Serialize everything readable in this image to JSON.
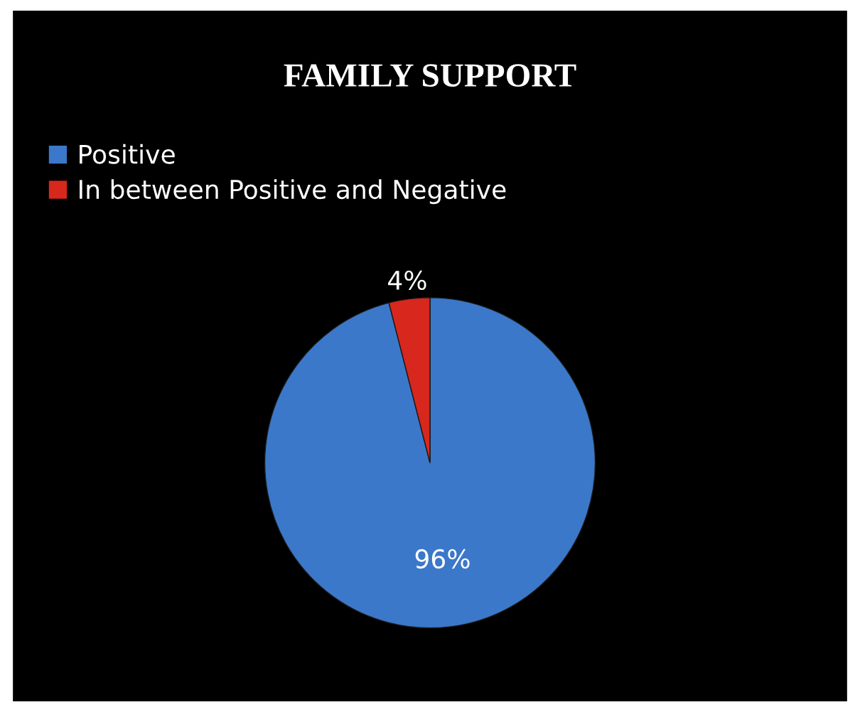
{
  "chart_data": {
    "type": "pie",
    "title": "FAMILY SUPPORT",
    "categories": [
      "Positive",
      "In between Positive and Negative"
    ],
    "values": [
      96,
      4
    ],
    "colors": [
      "#3b78c9",
      "#d8271d"
    ],
    "value_labels": [
      "96%",
      "4%"
    ],
    "legend": "top left"
  }
}
